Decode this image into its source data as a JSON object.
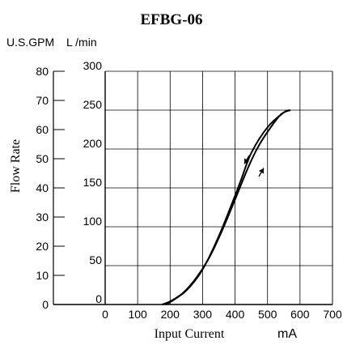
{
  "chart_data": {
    "type": "line",
    "title": "EFBG-06",
    "unit_labels": {
      "gpm": "U.S.GPM",
      "lpm": "L /min"
    },
    "ylabel": "Flow Rate",
    "xlabel": "Input Current",
    "xlabel_unit": "mA",
    "xlim": [
      0,
      700
    ],
    "x_ticks": [
      "0",
      "100",
      "200",
      "300",
      "400",
      "500",
      "600",
      "700"
    ],
    "ylim": [
      0,
      300
    ],
    "y_ticks_lpm": [
      "0",
      "50",
      "100",
      "150",
      "200",
      "250",
      "300"
    ],
    "y_ticks_gpm": [
      "0",
      "10",
      "20",
      "30",
      "40",
      "50",
      "60",
      "70",
      "80"
    ],
    "grid": true,
    "series": [
      {
        "direction": "increasing",
        "x": [
          185,
          200,
          250,
          300,
          350,
          400,
          420,
          450,
          500,
          550,
          570
        ],
        "y": [
          0,
          3,
          18,
          45,
          88,
          140,
          162,
          195,
          228,
          247,
          250
        ]
      },
      {
        "direction": "decreasing",
        "x": [
          570,
          540,
          500,
          470,
          440,
          400,
          360,
          320,
          280,
          240,
          200,
          175
        ],
        "y": [
          250,
          244,
          222,
          202,
          176,
          135,
          95,
          60,
          34,
          15,
          4,
          0
        ]
      }
    ]
  }
}
